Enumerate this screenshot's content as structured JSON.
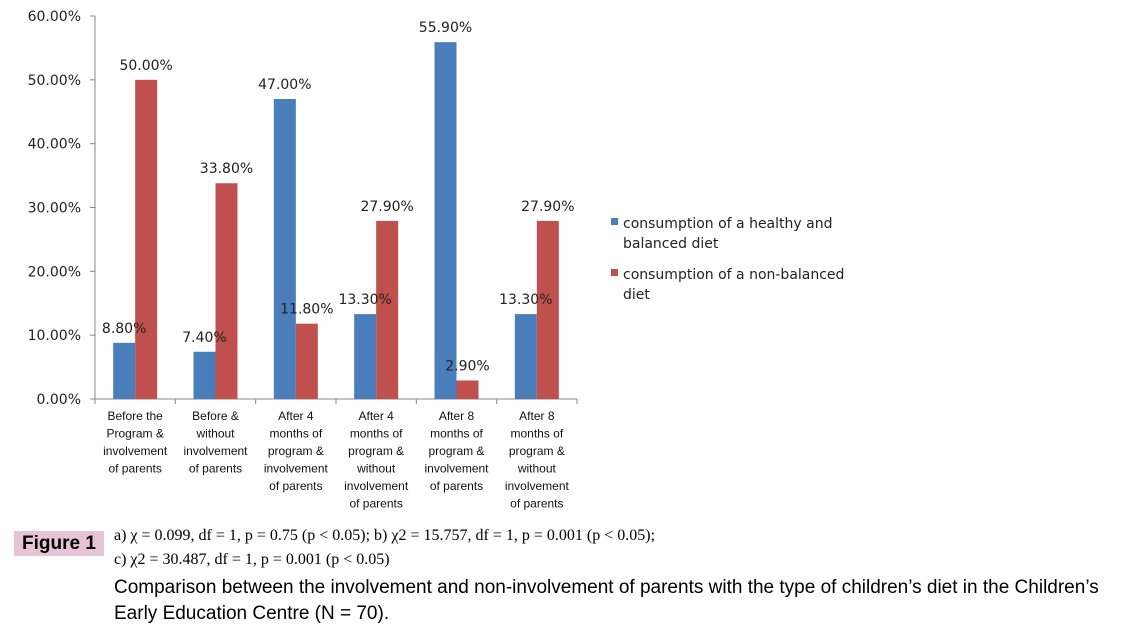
{
  "chart_data": {
    "type": "bar",
    "categories": [
      [
        "Before the",
        "Program &",
        "involvement",
        "of parents"
      ],
      [
        "Before &",
        "without",
        "involvement",
        "of parents"
      ],
      [
        "After 4",
        "months of",
        "program &",
        "involvement",
        "of parents"
      ],
      [
        "After 4",
        "months of",
        "program &",
        "without",
        "involvement",
        "of parents"
      ],
      [
        "After 8",
        "months of",
        "program &",
        "involvement",
        "of parents"
      ],
      [
        "After 8",
        "months of",
        "program &",
        "without",
        "involvement",
        "of parents"
      ]
    ],
    "series": [
      {
        "name": "consumption of a healthy and balanced diet",
        "legend_lines": [
          "consumption of a healthy and",
          "balanced diet"
        ],
        "color": "#4a7ebb",
        "values": [
          8.8,
          7.4,
          47.0,
          13.3,
          55.9,
          13.3
        ],
        "labels": [
          "8.80%",
          "7.40%",
          "47.00%",
          "13.30%",
          "55.90%",
          "13.30%"
        ]
      },
      {
        "name": "consumption of a non-balanced diet",
        "legend_lines": [
          "consumption of a non-balanced",
          "diet"
        ],
        "color": "#c0504d",
        "values": [
          50.0,
          33.8,
          11.8,
          27.9,
          2.9,
          27.9
        ],
        "labels": [
          "50.00%",
          "33.80%",
          "11.80%",
          "27.90%",
          "2.90%",
          "27.90%"
        ]
      }
    ],
    "yticks": [
      "0.00%",
      "10.00%",
      "20.00%",
      "30.00%",
      "40.00%",
      "50.00%",
      "60.00%"
    ],
    "ylim": [
      0,
      60
    ],
    "grid": false,
    "legend": "right"
  },
  "figure": {
    "label": "Figure 1",
    "stats_line1": "a) χ = 0.099, df = 1, p = 0.75 (p < 0.05);  b) χ2 = 15.757, df = 1, p = 0.001 (p < 0.05);",
    "stats_line2": "c) χ2 = 30.487, df = 1, p = 0.001 (p < 0.05)",
    "caption": "Comparison between the involvement and non-involvement of parents with the type of children’s diet in the Children’s Early Education Centre (N = 70)."
  }
}
